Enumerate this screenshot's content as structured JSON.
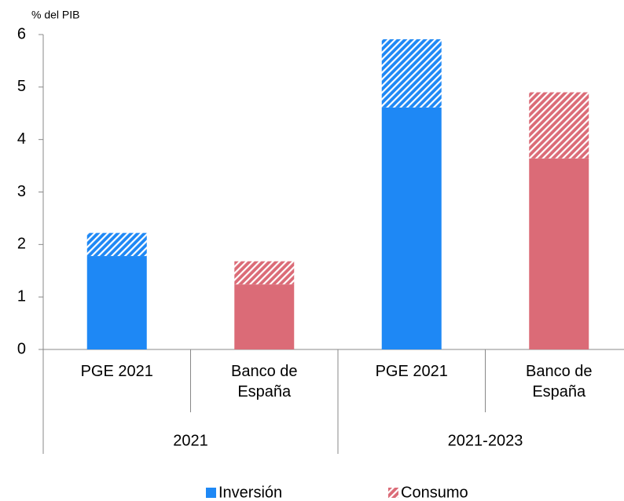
{
  "chart_data": {
    "type": "stacked_bar",
    "y_axis_label": "% del PIB",
    "categories": [
      "PGE 2021",
      "Banco de España",
      "PGE 2021",
      "Banco de España"
    ],
    "groups": [
      {
        "label": "2021",
        "size": 2
      },
      {
        "label": "2021-2023",
        "size": 2
      }
    ],
    "category_colors": [
      "#1e88f5",
      "#db6b77",
      "#1e88f5",
      "#db6b77"
    ],
    "series": [
      {
        "name": "Inversión",
        "color": "#1e88f5",
        "hatched": false,
        "values": [
          1.78,
          1.24,
          4.61,
          3.64
        ]
      },
      {
        "name": "Consumo",
        "color": "#db6b77",
        "hatched": true,
        "values": [
          0.44,
          0.44,
          1.3,
          1.26
        ]
      }
    ],
    "ylim": [
      0,
      6
    ],
    "yticks": [
      0,
      1,
      2,
      3,
      4,
      5,
      6
    ],
    "grid": false,
    "legend": "bottom"
  }
}
